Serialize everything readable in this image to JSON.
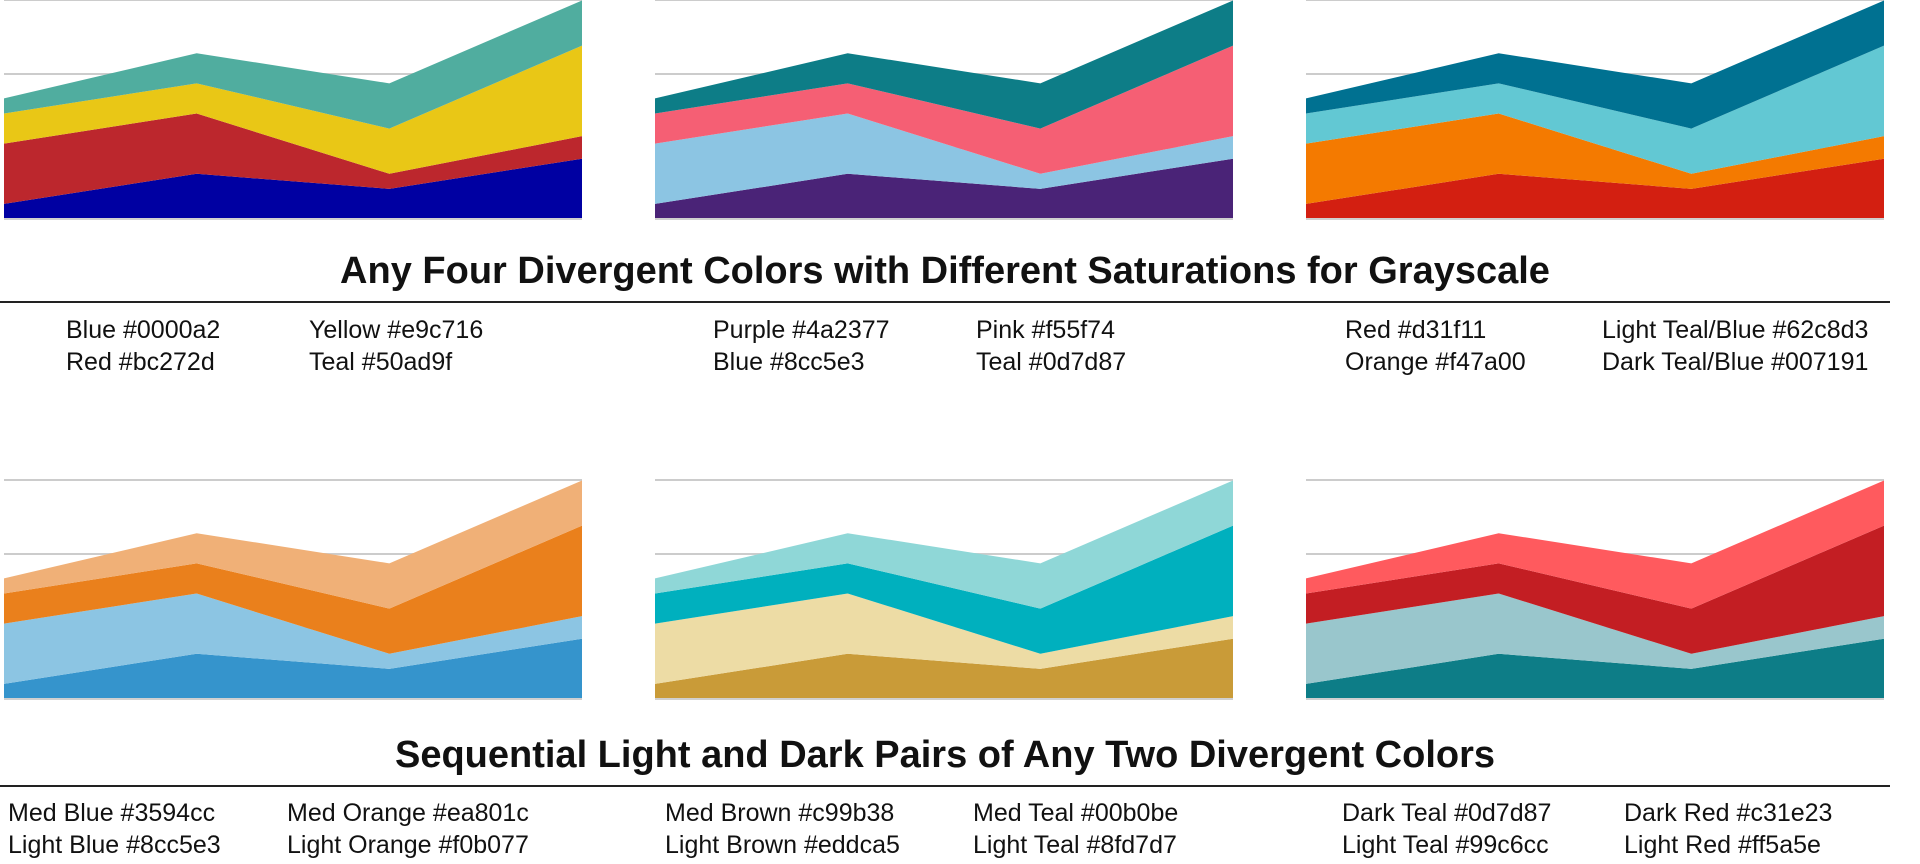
{
  "sections": [
    {
      "title": "Any Four Divergent Colors with Different Saturations for Grayscale"
    },
    {
      "title": "Sequential Light and Dark Pairs of Any Two Divergent Colors"
    }
  ],
  "legends": [
    [
      [
        "Blue #0000a2",
        "Red #bc272d"
      ],
      [
        "Yellow #e9c716",
        "Teal #50ad9f"
      ]
    ],
    [
      [
        "Purple #4a2377",
        "Blue #8cc5e3"
      ],
      [
        "Pink #f55f74",
        "Teal #0d7d87"
      ]
    ],
    [
      [
        "Red #d31f11",
        "Orange #f47a00"
      ],
      [
        "Light Teal/Blue #62c8d3",
        "Dark Teal/Blue #007191"
      ]
    ],
    [
      [
        "Med Blue #3594cc",
        "Light Blue #8cc5e3"
      ],
      [
        "Med Orange #ea801c",
        "Light Orange #f0b077"
      ]
    ],
    [
      [
        "Med Brown #c99b38",
        "Light Brown #eddca5"
      ],
      [
        "Med Teal #00b0be",
        "Light Teal #8fd7d7"
      ]
    ],
    [
      [
        "Dark Teal #0d7d87",
        "Light Teal #99c6cc"
      ],
      [
        "Dark Red #c31e23",
        "Light Red #ff5a5e"
      ]
    ]
  ],
  "chart_data": [
    {
      "type": "area",
      "stacked": true,
      "grid": true,
      "x": [
        1,
        2,
        3,
        4
      ],
      "ylim": [
        0,
        14
      ],
      "series": [
        {
          "values": [
            1,
            3,
            2,
            4
          ],
          "color": "#0000a2"
        },
        {
          "values": [
            4,
            4,
            1,
            1.5
          ],
          "color": "#bc272d"
        },
        {
          "values": [
            2,
            2,
            3,
            6
          ],
          "color": "#e9c716"
        },
        {
          "values": [
            1,
            2,
            3,
            3
          ],
          "color": "#50ad9f"
        }
      ]
    },
    {
      "type": "area",
      "stacked": true,
      "grid": true,
      "x": [
        1,
        2,
        3,
        4
      ],
      "ylim": [
        0,
        14
      ],
      "series": [
        {
          "values": [
            1,
            3,
            2,
            4
          ],
          "color": "#4a2377"
        },
        {
          "values": [
            4,
            4,
            1,
            1.5
          ],
          "color": "#8cc5e3"
        },
        {
          "values": [
            2,
            2,
            3,
            6
          ],
          "color": "#f55f74"
        },
        {
          "values": [
            1,
            2,
            3,
            3
          ],
          "color": "#0d7d87"
        }
      ]
    },
    {
      "type": "area",
      "stacked": true,
      "grid": true,
      "x": [
        1,
        2,
        3,
        4
      ],
      "ylim": [
        0,
        14
      ],
      "series": [
        {
          "values": [
            1,
            3,
            2,
            4
          ],
          "color": "#d31f11"
        },
        {
          "values": [
            4,
            4,
            1,
            1.5
          ],
          "color": "#f47a00"
        },
        {
          "values": [
            2,
            2,
            3,
            6
          ],
          "color": "#62c8d3"
        },
        {
          "values": [
            1,
            2,
            3,
            3
          ],
          "color": "#007191"
        }
      ]
    },
    {
      "type": "area",
      "stacked": true,
      "grid": true,
      "x": [
        1,
        2,
        3,
        4
      ],
      "ylim": [
        0,
        14
      ],
      "series": [
        {
          "values": [
            1,
            3,
            2,
            4
          ],
          "color": "#3594cc"
        },
        {
          "values": [
            4,
            4,
            1,
            1.5
          ],
          "color": "#8cc5e3"
        },
        {
          "values": [
            2,
            2,
            3,
            6
          ],
          "color": "#ea801c"
        },
        {
          "values": [
            1,
            2,
            3,
            3
          ],
          "color": "#f0b077"
        }
      ]
    },
    {
      "type": "area",
      "stacked": true,
      "grid": true,
      "x": [
        1,
        2,
        3,
        4
      ],
      "ylim": [
        0,
        14
      ],
      "series": [
        {
          "values": [
            1,
            3,
            2,
            4
          ],
          "color": "#c99b38"
        },
        {
          "values": [
            4,
            4,
            1,
            1.5
          ],
          "color": "#eddca5"
        },
        {
          "values": [
            2,
            2,
            3,
            6
          ],
          "color": "#00b0be"
        },
        {
          "values": [
            1,
            2,
            3,
            3
          ],
          "color": "#8fd7d7"
        }
      ]
    },
    {
      "type": "area",
      "stacked": true,
      "grid": true,
      "x": [
        1,
        2,
        3,
        4
      ],
      "ylim": [
        0,
        14
      ],
      "series": [
        {
          "values": [
            1,
            3,
            2,
            4
          ],
          "color": "#0d7d87"
        },
        {
          "values": [
            4,
            4,
            1,
            1.5
          ],
          "color": "#99c6cc"
        },
        {
          "values": [
            2,
            2,
            3,
            6
          ],
          "color": "#c31e23"
        },
        {
          "values": [
            1,
            2,
            3,
            3
          ],
          "color": "#ff5a5e"
        }
      ]
    }
  ]
}
